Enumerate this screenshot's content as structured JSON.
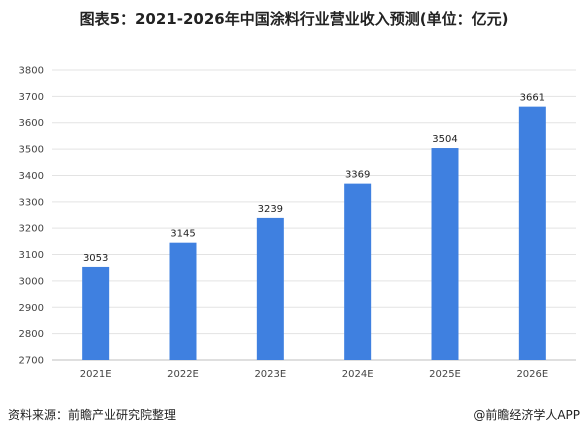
{
  "chart_data": {
    "type": "bar",
    "title": "图表5：2021-2026年中国涂料行业营业收入预测(单位：亿元)",
    "categories": [
      "2021E",
      "2022E",
      "2023E",
      "2024E",
      "2025E",
      "2026E"
    ],
    "values": [
      3053,
      3145,
      3239,
      3369,
      3504,
      3661
    ],
    "ylim": [
      2700,
      3800
    ],
    "yticks": [
      2700,
      2800,
      2900,
      3000,
      3100,
      3200,
      3300,
      3400,
      3500,
      3600,
      3700,
      3800
    ],
    "grid": true,
    "bar_color": "#3f80e0"
  },
  "footer": {
    "source": "资料来源：前瞻产业研究院整理",
    "credit": "@前瞻经济学人APP"
  }
}
